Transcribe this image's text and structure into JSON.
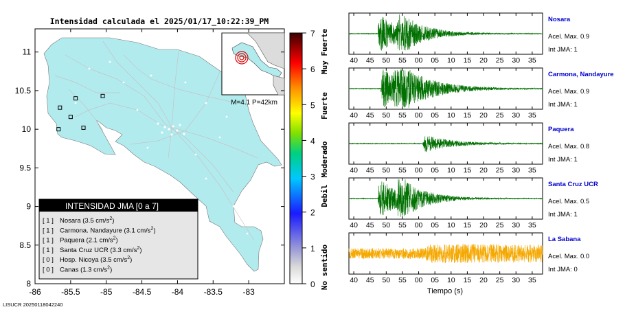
{
  "title": "Intensidad calculada el 2025/01/17_10:22:39_PM",
  "footer": "LISUCR 20250118042240",
  "map": {
    "x_ticks": [
      "-86",
      "-85.5",
      "-85",
      "-84.5",
      "-84",
      "-83.5",
      "-83"
    ],
    "y_ticks": [
      "11",
      "10.5",
      "10",
      "9.5",
      "9",
      "8.5",
      "8"
    ],
    "lon_range": [
      -86,
      -82.5
    ],
    "lat_range": [
      8,
      11.3
    ],
    "inset_label": "M=4.1 P=42km",
    "land_color": "#b2ebee",
    "stations": [
      {
        "lon": -85.65,
        "lat": 10.28
      },
      {
        "lon": -85.5,
        "lat": 10.16
      },
      {
        "lon": -85.67,
        "lat": 10.0
      },
      {
        "lon": -85.32,
        "lat": 10.02
      },
      {
        "lon": -85.43,
        "lat": 10.4
      },
      {
        "lon": -85.05,
        "lat": 10.43
      }
    ]
  },
  "legend": {
    "header": "INTENSIDAD JMA [0 a 7]",
    "entries": [
      {
        "code": "[ 1 ]",
        "name": "Nosara (3.5 cm/s",
        "sup": "2",
        "close": ")"
      },
      {
        "code": "[ 1 ]",
        "name": "Carmona. Nandayure (3.1 cm/s",
        "sup": "2",
        "close": ")"
      },
      {
        "code": "[ 1 ]",
        "name": "Paquera (2.1 cm/s",
        "sup": "2",
        "close": ")"
      },
      {
        "code": "[ 1 ]",
        "name": "Santa Cruz UCR (3.3 cm/s",
        "sup": "2",
        "close": ")"
      },
      {
        "code": "[ 0 ]",
        "name": "Hosp. Nicoya (3.5 cm/s",
        "sup": "2",
        "close": ")"
      },
      {
        "code": "[ 0 ]",
        "name": "Canas (1.3 cm/s",
        "sup": "2",
        "close": ")"
      }
    ]
  },
  "colorbar": {
    "ticks": [
      "0",
      "1",
      "2",
      "3",
      "4",
      "5",
      "6",
      "7"
    ],
    "labels": [
      "No sentido",
      "Debil",
      "Moderado",
      "Fuerte",
      "Muy Fuerte"
    ]
  },
  "chart_data": {
    "type": "line",
    "xlabel": "Tiempo (s)",
    "x_ticks": [
      "40",
      "45",
      "50",
      "55",
      "00",
      "05",
      "10",
      "15",
      "20",
      "25",
      "30",
      "35"
    ],
    "series": [
      {
        "name": "Nosara",
        "acel": "Acel. Max. 0.9",
        "jma": "Int JMA: 1",
        "color": "#007000",
        "onset": 47.5,
        "peak": 1.0,
        "decay": 7,
        "bursts": [
          [
            48,
            1.0
          ],
          [
            54,
            0.85
          ]
        ],
        "noise": 0.02
      },
      {
        "name": "Carmona, Nandayure",
        "acel": "Acel. Max. 0.9",
        "jma": "Int JMA: 1",
        "color": "#007000",
        "onset": 47.5,
        "peak": 1.0,
        "decay": 9,
        "bursts": [
          [
            49,
            1.0
          ],
          [
            53,
            0.9
          ]
        ],
        "noise": 0.02
      },
      {
        "name": "Paquera",
        "acel": "Acel. Max. 0.8",
        "jma": "Int JMA: 1",
        "color": "#007000",
        "onset": 52.5,
        "peak": 0.45,
        "decay": 8,
        "bursts": [
          [
            62,
            1.0
          ]
        ],
        "noise": 0.02
      },
      {
        "name": "Santa Cruz UCR",
        "acel": "Acel. Max. 0.5",
        "jma": "Int JMA: 1",
        "color": "#007000",
        "onset": 47.5,
        "peak": 1.0,
        "decay": 7,
        "bursts": [
          [
            48,
            1.0
          ],
          [
            54,
            0.85
          ]
        ],
        "noise": 0.02
      },
      {
        "name": "La Sabana",
        "acel": "Acel. Max. 0.0",
        "jma": "Int JMA: 0",
        "color": "#f5a800",
        "onset": 38,
        "peak": 0.25,
        "decay": 200,
        "bursts": [
          [
            63,
            0.9
          ]
        ],
        "noise": 0.28
      }
    ]
  }
}
